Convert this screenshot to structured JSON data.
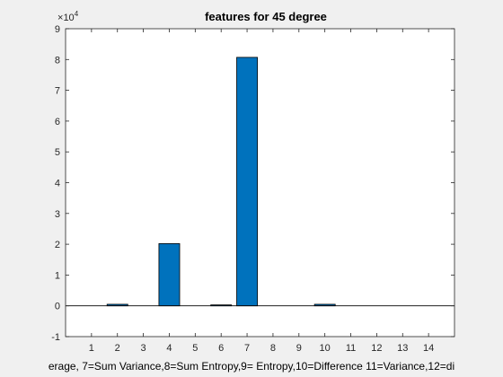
{
  "chart_data": {
    "type": "bar",
    "title": "features for 45 degree",
    "xlabel": "erage, 7=Sum Variance,8=Sum Entropy,9= Entropy,10=Difference 11=Variance,12=di",
    "ylabel": "",
    "y_exponent_label": "10",
    "y_exponent_power": "4",
    "y_multiplier_prefix": "×",
    "categories": [
      "1",
      "2",
      "3",
      "4",
      "5",
      "6",
      "7",
      "8",
      "9",
      "10",
      "11",
      "12",
      "13",
      "14"
    ],
    "values": [
      0,
      500,
      0,
      20200,
      0,
      300,
      80700,
      0,
      0,
      500,
      0,
      0,
      0,
      0
    ],
    "xlim": [
      0,
      15
    ],
    "ylim": [
      -10000,
      90000
    ],
    "yticks": [
      -10000,
      0,
      10000,
      20000,
      30000,
      40000,
      50000,
      60000,
      70000,
      80000,
      90000
    ],
    "ytick_labels": [
      "-1",
      "0",
      "1",
      "2",
      "3",
      "4",
      "5",
      "6",
      "7",
      "8",
      "9"
    ],
    "grid": false,
    "legend": "none",
    "bar_color": "#0072BD",
    "axes_background": "#ffffff",
    "figure_background": "#f0f0f0"
  }
}
